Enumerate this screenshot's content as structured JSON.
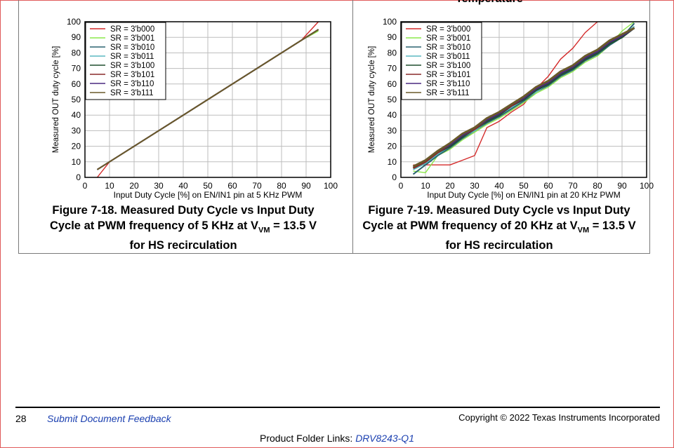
{
  "header": {
    "left_title_fragment": "",
    "right_title_fragment": "Temperature"
  },
  "chart_data": [
    {
      "type": "line",
      "title": "",
      "xlabel": "Input Duty Cycle [%] on EN/IN1 pin at 5 KHz PWM",
      "ylabel": "Measured OUT duty cycle [%]",
      "xlim": [
        0,
        100
      ],
      "ylim": [
        0,
        100
      ],
      "xticks": [
        0,
        10,
        20,
        30,
        40,
        50,
        60,
        70,
        80,
        90,
        100
      ],
      "yticks": [
        0,
        10,
        20,
        30,
        40,
        50,
        60,
        70,
        80,
        90,
        100
      ],
      "grid": true,
      "legend_position": "top-left",
      "series": [
        {
          "name": "SR = 3'b000",
          "color": "#d42a2a",
          "x": [
            5,
            10,
            50,
            88,
            95
          ],
          "y": [
            0,
            10,
            50,
            88,
            100
          ]
        },
        {
          "name": "SR = 3'b001",
          "color": "#8ce84a",
          "x": [
            5,
            10,
            50,
            88,
            95
          ],
          "y": [
            5,
            10,
            50,
            88,
            94
          ]
        },
        {
          "name": "SR = 3'b010",
          "color": "#2a6470",
          "x": [
            5,
            10,
            50,
            88,
            95
          ],
          "y": [
            5,
            10,
            50,
            88,
            95
          ]
        },
        {
          "name": "SR = 3'b011",
          "color": "#5ab8c0",
          "x": [
            5,
            10,
            50,
            88,
            95
          ],
          "y": [
            5,
            10,
            50,
            88,
            95
          ]
        },
        {
          "name": "SR = 3'b100",
          "color": "#1f4f2f",
          "x": [
            5,
            10,
            50,
            88,
            95
          ],
          "y": [
            5,
            10,
            50,
            88,
            95
          ]
        },
        {
          "name": "SR = 3'b101",
          "color": "#8a2a2a",
          "x": [
            5,
            10,
            50,
            88,
            95
          ],
          "y": [
            5,
            10,
            50,
            88,
            95
          ]
        },
        {
          "name": "SR = 3'b110",
          "color": "#4a2a80",
          "x": [
            5,
            10,
            50,
            88,
            95
          ],
          "y": [
            5,
            10,
            50,
            88,
            95
          ]
        },
        {
          "name": "SR = 3'b111",
          "color": "#6a5a2a",
          "x": [
            5,
            10,
            50,
            88,
            95
          ],
          "y": [
            5,
            10,
            50,
            88,
            95
          ]
        }
      ]
    },
    {
      "type": "line",
      "title": "",
      "xlabel": "Input Duty Cycle [%] on EN/IN1 pin at 20 KHz PWM",
      "ylabel": "Measured OUT duty cycle [%]",
      "xlim": [
        0,
        100
      ],
      "ylim": [
        0,
        100
      ],
      "xticks": [
        0,
        10,
        20,
        30,
        40,
        50,
        60,
        70,
        80,
        90,
        100
      ],
      "yticks": [
        0,
        10,
        20,
        30,
        40,
        50,
        60,
        70,
        80,
        90,
        100
      ],
      "grid": true,
      "legend_position": "top-left",
      "series": [
        {
          "name": "SR = 3'b000",
          "color": "#d42a2a",
          "x": [
            5,
            10,
            15,
            20,
            25,
            30,
            35,
            40,
            45,
            50,
            55,
            60,
            65,
            70,
            75,
            80
          ],
          "y": [
            8,
            8,
            8,
            8,
            11,
            14,
            32,
            36,
            42,
            47,
            57,
            65,
            76,
            83,
            93,
            100
          ]
        },
        {
          "name": "SR = 3'b001",
          "color": "#8ce84a",
          "x": [
            5,
            10,
            15,
            20,
            25,
            30,
            35,
            40,
            45,
            50,
            55,
            60,
            65,
            70,
            75,
            80,
            85,
            90,
            95
          ],
          "y": [
            4,
            3,
            14,
            18,
            24,
            29,
            34,
            38,
            43,
            48,
            54,
            58,
            64,
            68,
            74,
            78,
            85,
            94,
            100
          ]
        },
        {
          "name": "SR = 3'b010",
          "color": "#2a6470",
          "x": [
            5,
            10,
            15,
            20,
            25,
            30,
            35,
            40,
            45,
            50,
            55,
            60,
            65,
            70,
            75,
            80,
            85,
            90,
            95
          ],
          "y": [
            2,
            8,
            14,
            19,
            25,
            30,
            35,
            39,
            44,
            49,
            55,
            59,
            65,
            69,
            75,
            79,
            85,
            90,
            99
          ]
        },
        {
          "name": "SR = 3'b011",
          "color": "#5ab8c0",
          "x": [
            5,
            10,
            15,
            20,
            25,
            30,
            35,
            40,
            45,
            50,
            55,
            60,
            65,
            70,
            75,
            80,
            85,
            90,
            95
          ],
          "y": [
            5,
            9,
            15,
            20,
            26,
            30,
            36,
            40,
            45,
            50,
            55,
            60,
            66,
            70,
            76,
            80,
            86,
            90,
            97
          ]
        },
        {
          "name": "SR = 3'b100",
          "color": "#1f4f2f",
          "x": [
            5,
            10,
            15,
            20,
            25,
            30,
            35,
            40,
            45,
            50,
            55,
            60,
            65,
            70,
            75,
            80,
            85,
            90,
            95
          ],
          "y": [
            6,
            10,
            16,
            20,
            26,
            31,
            36,
            40,
            46,
            50,
            56,
            60,
            66,
            70,
            76,
            80,
            86,
            90,
            96
          ]
        },
        {
          "name": "SR = 3'b101",
          "color": "#8a2a2a",
          "x": [
            5,
            10,
            15,
            20,
            25,
            30,
            35,
            40,
            45,
            50,
            55,
            60,
            65,
            70,
            75,
            80,
            85,
            90,
            95
          ],
          "y": [
            6,
            10,
            16,
            21,
            27,
            31,
            37,
            41,
            46,
            51,
            57,
            61,
            67,
            71,
            77,
            81,
            87,
            91,
            96
          ]
        },
        {
          "name": "SR = 3'b110",
          "color": "#4a2a80",
          "x": [
            5,
            10,
            15,
            20,
            25,
            30,
            35,
            40,
            45,
            50,
            55,
            60,
            65,
            70,
            75,
            80,
            85,
            90,
            95
          ],
          "y": [
            7,
            11,
            17,
            21,
            27,
            32,
            37,
            41,
            47,
            51,
            57,
            61,
            67,
            71,
            77,
            81,
            87,
            91,
            96
          ]
        },
        {
          "name": "SR = 3'b111",
          "color": "#6a5a2a",
          "x": [
            5,
            10,
            15,
            20,
            25,
            30,
            35,
            40,
            45,
            50,
            55,
            60,
            65,
            70,
            75,
            80,
            85,
            90,
            95
          ],
          "y": [
            7,
            11,
            17,
            22,
            28,
            32,
            38,
            42,
            47,
            52,
            58,
            62,
            68,
            72,
            78,
            82,
            88,
            92,
            96
          ]
        }
      ]
    }
  ],
  "captions": {
    "left": {
      "line1": "Figure 7-18. Measured Duty Cycle vs Input Duty",
      "line2_pre": "Cycle at PWM frequency of 5 KHz at V",
      "line2_sub": "VM",
      "line2_post": " = 13.5 V",
      "line3": "for HS recirculation"
    },
    "right": {
      "line1": "Figure 7-19. Measured Duty Cycle vs Input Duty",
      "line2_pre": "Cycle at PWM frequency of 20 KHz at V",
      "line2_sub": "VM",
      "line2_post": " = 13.5 V",
      "line3": "for HS recirculation"
    }
  },
  "footer": {
    "page_number": "28",
    "feedback_link": "Submit Document Feedback",
    "copyright": "Copyright © 2022 Texas Instruments Incorporated",
    "folder_links_label": "Product Folder Links:",
    "folder_links_value": "DRV8243-Q1"
  }
}
